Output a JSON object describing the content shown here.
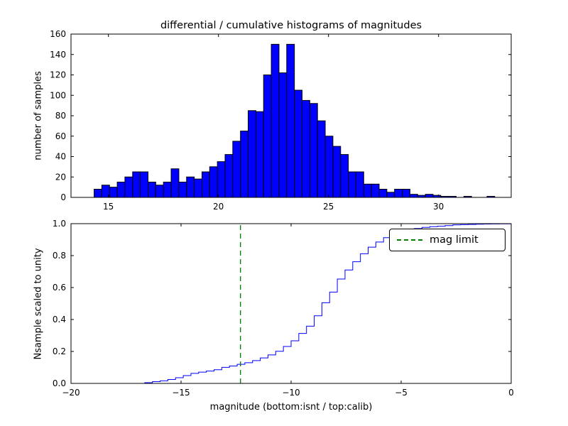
{
  "figure": {
    "background": "#ffffff"
  },
  "chart_data": [
    {
      "type": "bar",
      "subtype": "histogram",
      "title": "differential / cumulative histograms of magnitudes",
      "ylabel": "number of samples",
      "xlabel": "",
      "bin_start": 14.35,
      "bin_width": 0.35,
      "counts": [
        8,
        12,
        10,
        15,
        20,
        25,
        25,
        15,
        12,
        15,
        28,
        15,
        20,
        18,
        25,
        30,
        35,
        42,
        55,
        65,
        85,
        84,
        120,
        150,
        122,
        150,
        105,
        95,
        92,
        75,
        60,
        50,
        42,
        25,
        25,
        13,
        13,
        8,
        5,
        8,
        8,
        3,
        2,
        3,
        2,
        1,
        1,
        0,
        1,
        0,
        0,
        1
      ],
      "xlim": [
        13.3,
        33.3
      ],
      "ylim": [
        0,
        160
      ],
      "xticks": [
        15,
        20,
        25,
        30
      ],
      "xtick_labels": [
        "15",
        "20",
        "25",
        "30"
      ],
      "yticks": [
        0,
        20,
        40,
        60,
        80,
        100,
        120,
        140,
        160
      ],
      "ytick_labels": [
        "0",
        "20",
        "40",
        "60",
        "80",
        "100",
        "120",
        "140",
        "160"
      ],
      "bar_color": "#0000ff",
      "bar_edge_color": "#000000",
      "grid": false
    },
    {
      "type": "line",
      "subtype": "cumulative-step",
      "title": "",
      "ylabel": "Nsample scaled to unity",
      "xlabel": "magnitude (bottom:isnt / top:calib)",
      "xlim": [
        -20,
        0
      ],
      "ylim": [
        0,
        1.0
      ],
      "xticks": [
        -20,
        -15,
        -10,
        -5,
        0
      ],
      "xtick_labels": [
        "−20",
        "−15",
        "−10",
        "−5",
        "0"
      ],
      "yticks": [
        0.0,
        0.2,
        0.4,
        0.6,
        0.8,
        1.0
      ],
      "ytick_labels": [
        "0.0",
        "0.2",
        "0.4",
        "0.6",
        "0.8",
        "1.0"
      ],
      "line_color": "#0000ff",
      "x_offset_from_top_bins": -31.0,
      "mag_limit": {
        "x": -12.3,
        "color": "#008000",
        "style": "dashed",
        "label": "mag limit"
      },
      "legend_position": "upper right",
      "grid": false
    }
  ]
}
